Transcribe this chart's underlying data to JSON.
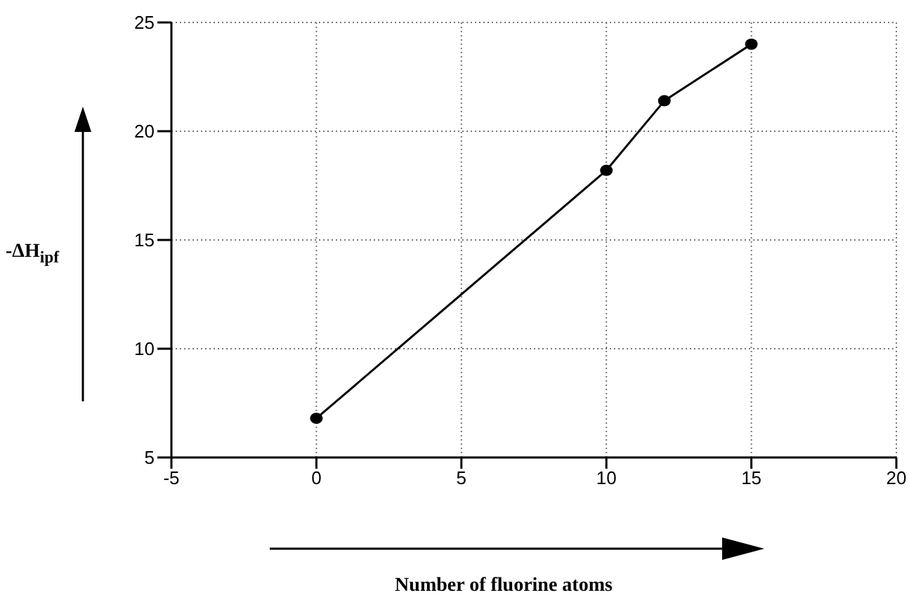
{
  "chart_data": {
    "type": "line",
    "xlabel": "Number of fluorine atoms",
    "ylabel": "-ΔH$_{ipf}$",
    "x": [
      0,
      10,
      12,
      15
    ],
    "series": [
      {
        "color": "#000000",
        "values": [
          6.8,
          18.2,
          21.4,
          24
        ]
      }
    ],
    "xlim": [
      -5,
      20
    ],
    "xticks": [
      -5,
      0,
      5,
      10,
      15,
      20
    ],
    "ylim": [
      5,
      25
    ],
    "yticks": [
      5,
      10,
      15,
      20,
      25
    ],
    "grid": true,
    "marker": "circle",
    "line_style": "solid"
  }
}
